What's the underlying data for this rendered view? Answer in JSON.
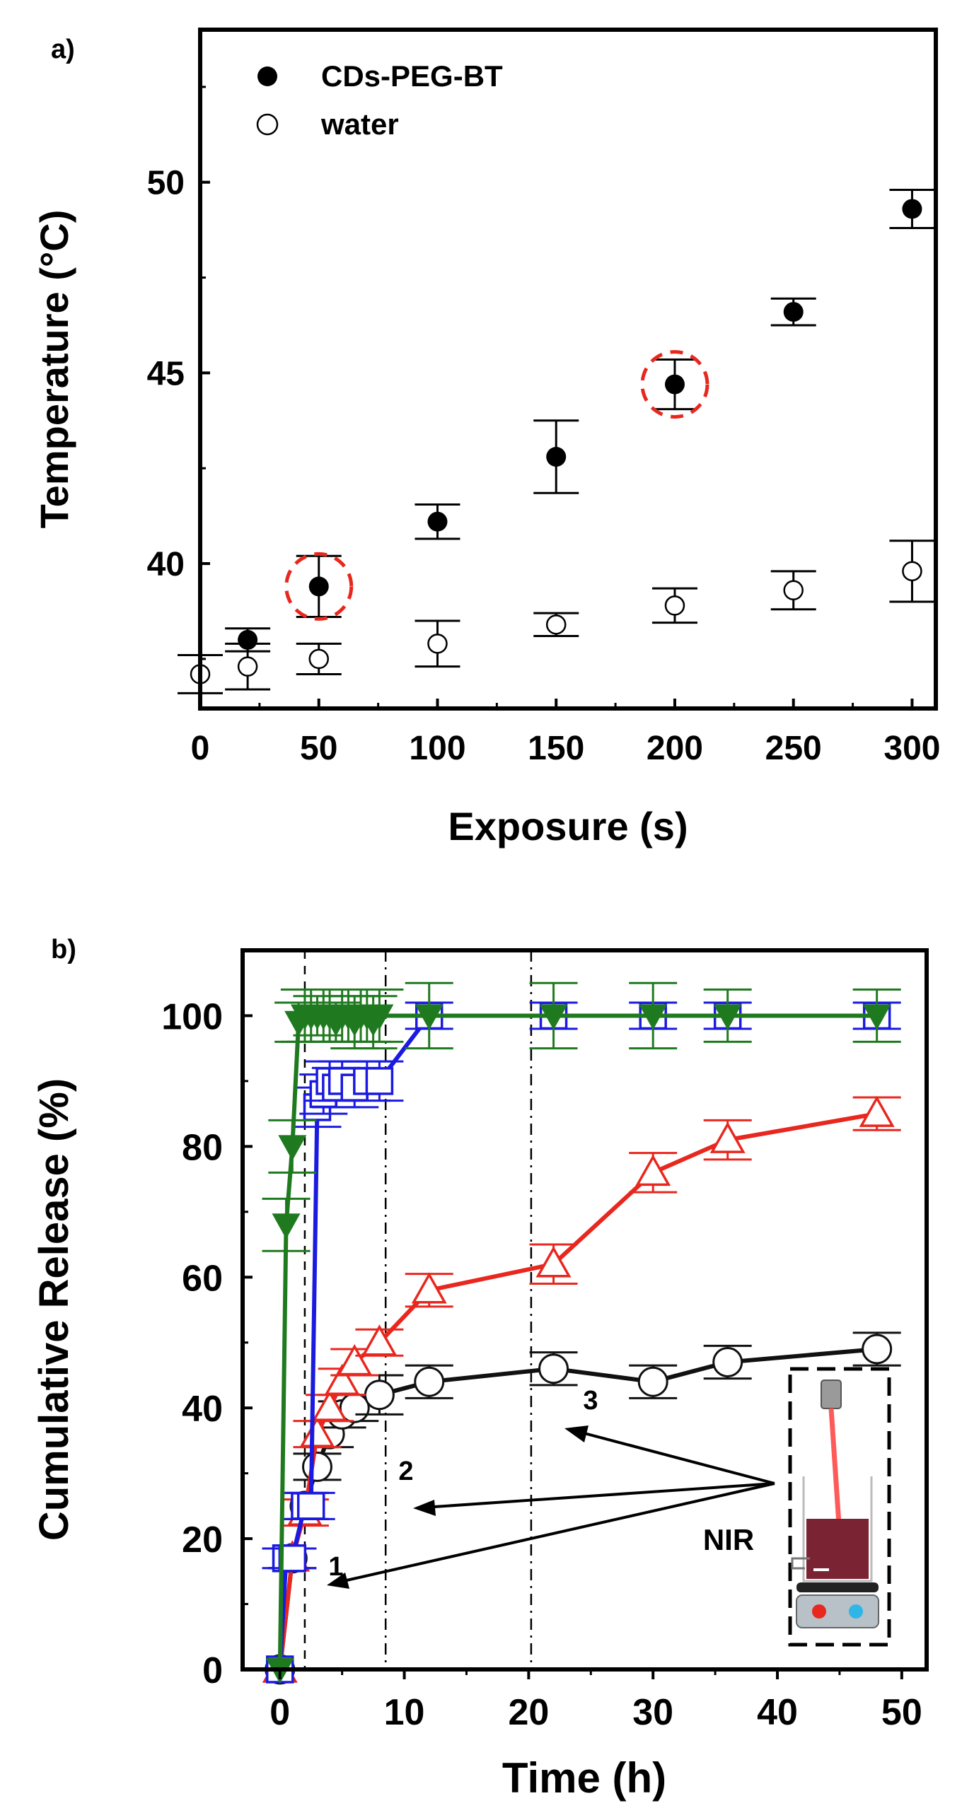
{
  "chart_data": [
    {
      "panel_label": "a)",
      "type": "scatter",
      "xlabel": "Exposure (s)",
      "ylabel": "Temperature (°C)",
      "xlim": [
        0,
        310
      ],
      "ylim": [
        36.2,
        54
      ],
      "x_ticks": [
        0,
        50,
        100,
        150,
        200,
        250,
        300
      ],
      "y_ticks": [
        40,
        45,
        50
      ],
      "grid": false,
      "legend_position": "top-left",
      "series": [
        {
          "name": "CDs-PEG-BT",
          "marker": "filled-circle",
          "x": [
            20,
            50,
            100,
            150,
            200,
            250,
            300
          ],
          "y": [
            38.0,
            39.4,
            41.1,
            42.8,
            44.7,
            46.6,
            49.3
          ],
          "err": [
            0.3,
            0.8,
            0.45,
            0.95,
            0.65,
            0.35,
            0.5
          ]
        },
        {
          "name": "water",
          "marker": "open-circle",
          "x": [
            0,
            20,
            50,
            100,
            150,
            200,
            250,
            300
          ],
          "y": [
            37.1,
            37.3,
            37.5,
            37.9,
            38.4,
            38.9,
            39.3,
            39.8
          ],
          "err": [
            0.5,
            0.6,
            0.4,
            0.6,
            0.3,
            0.45,
            0.5,
            0.8
          ]
        }
      ],
      "annotations": [
        {
          "type": "dashed-circle",
          "x": 50,
          "y": 39.4,
          "color": "#e8271e"
        },
        {
          "type": "dashed-circle",
          "x": 200,
          "y": 44.7,
          "color": "#e8271e"
        }
      ]
    },
    {
      "panel_label": "b)",
      "type": "line",
      "xlabel": "Time (h)",
      "ylabel": "Cumulative Release (%)",
      "xlim": [
        -3,
        52
      ],
      "ylim": [
        0,
        110
      ],
      "x_ticks": [
        0,
        10,
        20,
        30,
        40,
        50
      ],
      "y_ticks": [
        0,
        20,
        40,
        60,
        80,
        100
      ],
      "grid": false,
      "vlines": [
        {
          "x": 2,
          "label": "1"
        },
        {
          "x": 8.5,
          "label": "2"
        },
        {
          "x": 20.2,
          "label": "3"
        }
      ],
      "inset_label": "NIR",
      "series": [
        {
          "name": "green",
          "color": "#1f7a1f",
          "marker": "filled-triangle-down",
          "x": [
            0,
            0.5,
            1,
            1.5,
            2,
            2.5,
            3,
            3.5,
            4,
            4.5,
            5,
            5.5,
            6,
            6.5,
            7,
            7.5,
            8,
            12,
            22,
            30,
            36,
            48
          ],
          "y": [
            0,
            68,
            80,
            99,
            100,
            100,
            100,
            100,
            100,
            99,
            100,
            100,
            99,
            100,
            100,
            99,
            100,
            100,
            100,
            100,
            100,
            100
          ],
          "err": [
            0,
            4,
            4,
            3,
            4,
            4,
            3,
            4,
            4,
            3,
            4,
            4,
            4,
            4,
            4,
            4,
            4,
            5,
            5,
            5,
            4,
            4
          ]
        },
        {
          "name": "blue",
          "color": "#1a1ae0",
          "marker": "open-square",
          "x": [
            0,
            0.5,
            1,
            2,
            2.5,
            3,
            3.5,
            4,
            4.5,
            5,
            6,
            7,
            8,
            12,
            22,
            30,
            36,
            48
          ],
          "y": [
            0,
            17,
            17,
            25,
            25,
            86,
            88,
            90,
            89,
            90,
            89,
            90,
            90,
            100,
            100,
            100,
            100,
            100
          ],
          "err": [
            0,
            1.5,
            1.5,
            2,
            2,
            3,
            3,
            3,
            3,
            3,
            3,
            3,
            3,
            2,
            2,
            2,
            2,
            2
          ]
        },
        {
          "name": "red",
          "color": "#e8271e",
          "marker": "open-triangle-up",
          "x": [
            0,
            1,
            2,
            3,
            4,
            5,
            6,
            8,
            12,
            22,
            30,
            36,
            48
          ],
          "y": [
            0,
            17,
            24,
            36,
            40,
            44,
            47,
            50,
            58,
            62,
            76,
            81,
            85
          ],
          "err": [
            0,
            1.5,
            2,
            2,
            2,
            2,
            2,
            2,
            2.5,
            3,
            3,
            3,
            2.5
          ]
        },
        {
          "name": "black",
          "color": "#111111",
          "marker": "open-circle",
          "x": [
            0,
            1,
            2,
            3,
            4,
            5,
            6,
            8,
            12,
            22,
            30,
            36,
            48
          ],
          "y": [
            0,
            17,
            25,
            31,
            36,
            39,
            40,
            42,
            44,
            46,
            44,
            47,
            49
          ],
          "err": [
            0,
            1.5,
            2,
            2,
            2,
            2,
            2,
            3,
            2.5,
            2.5,
            2.5,
            2.5,
            2.5
          ]
        }
      ]
    }
  ]
}
